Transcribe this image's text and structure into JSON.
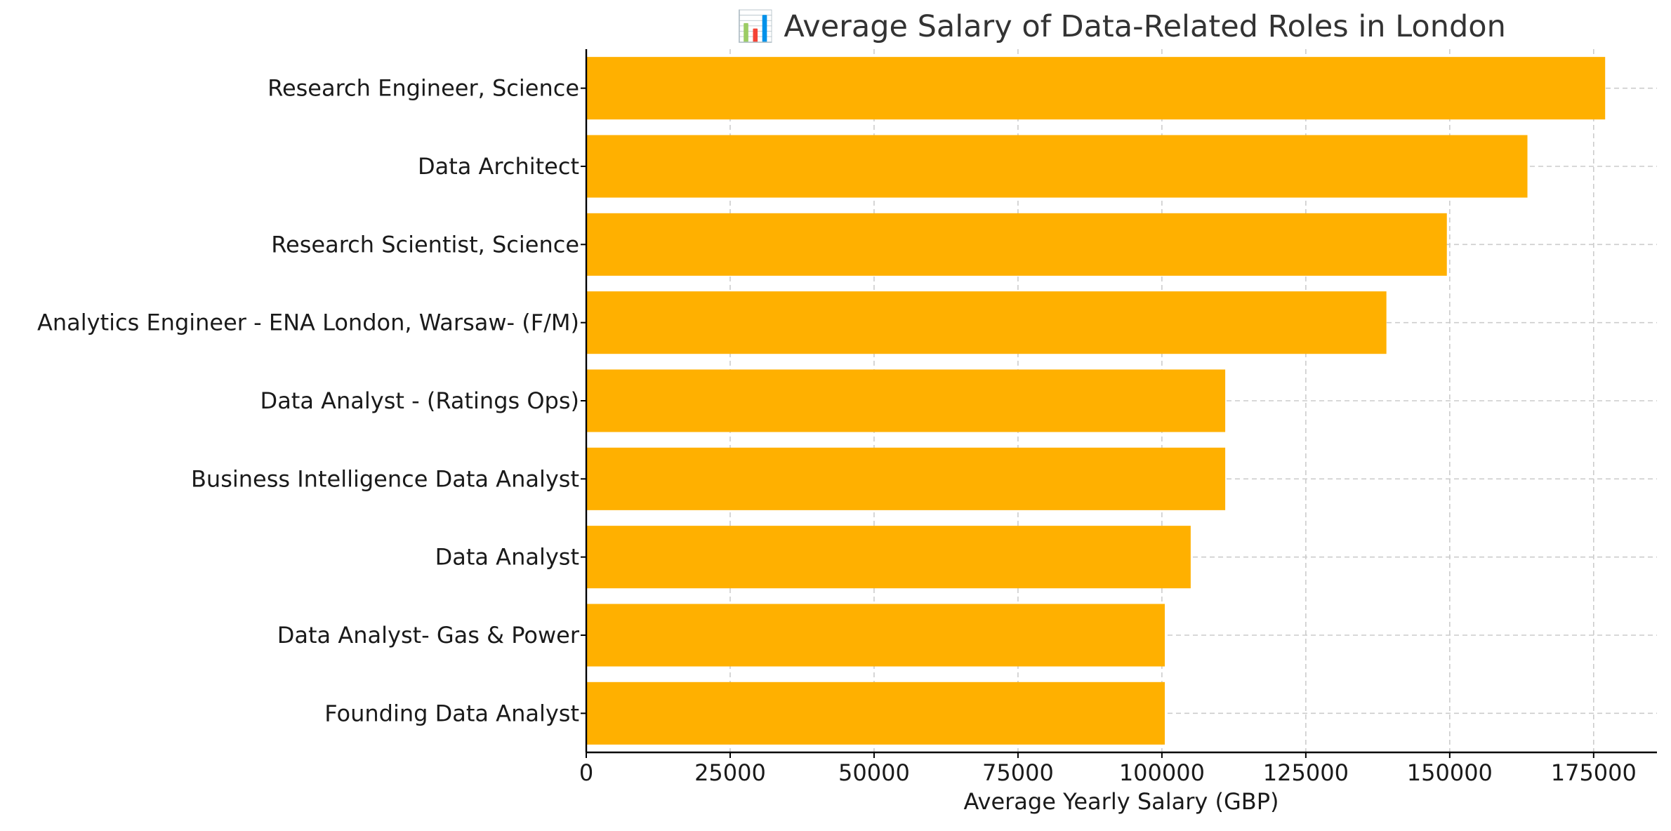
{
  "chart_data": {
    "type": "bar",
    "orientation": "horizontal",
    "title": "📊 Average Salary of Data-Related Roles in London",
    "xlabel": "Average Yearly Salary (GBP)",
    "ylabel": "",
    "categories": [
      "Research Engineer, Science",
      "Data Architect",
      "Research Scientist, Science",
      "Analytics Engineer - ENA London, Warsaw- (F/M)",
      "Data Analyst - (Ratings Ops)",
      "Business Intelligence Data Analyst",
      "Data Analyst",
      "Data Analyst- Gas & Power",
      "Founding Data Analyst"
    ],
    "values": [
      177000,
      163500,
      149500,
      139000,
      111000,
      111000,
      105000,
      100500,
      100500
    ],
    "xlim": [
      0,
      186000
    ],
    "xticks": [
      0,
      25000,
      50000,
      75000,
      100000,
      125000,
      150000,
      175000
    ],
    "grid": true,
    "bar_color": "#FFB000",
    "legend": "none"
  }
}
